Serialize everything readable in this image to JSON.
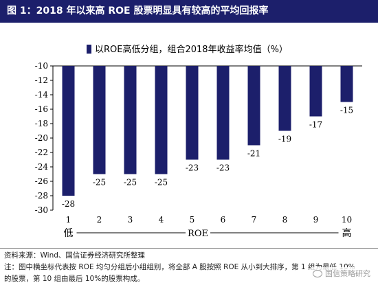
{
  "title": "图 1：2018 年以来高 ROE 股票明显具有较高的平均回报率",
  "footer": {
    "source": "资料来源：Wind、国信证券经济研究所整理",
    "note1": "注：图中横坐标代表按 ROE 均匀分组后小组组别，将全部 A 股按照 ROE 从小到大排序，第 1 组为最低 10%",
    "note2": "的股票，第 10 组由最后 10%的股票构成。"
  },
  "watermark": "国信策略研究",
  "chart_data": {
    "type": "bar",
    "legend": "以ROE高低分组，组合2018年收益率均值（%）",
    "categories": [
      "1",
      "2",
      "3",
      "4",
      "5",
      "6",
      "7",
      "8",
      "9",
      "10"
    ],
    "values": [
      -28,
      -25,
      -25,
      -25,
      -23,
      -23,
      -21,
      -19,
      -17,
      -15
    ],
    "data_labels": [
      "-28",
      "-25",
      "-25",
      "-25",
      "-23",
      "-23",
      "-21",
      "-19",
      "-17",
      "-15"
    ],
    "yticks": [
      "-10",
      "-12",
      "-14",
      "-16",
      "-18",
      "-20",
      "-22",
      "-24",
      "-26",
      "-28",
      "-30"
    ],
    "ylim": [
      -30,
      -10
    ],
    "xlabel": "ROE",
    "x_low_label": "低",
    "x_high_label": "高",
    "bar_color": "#1c1f6b"
  }
}
